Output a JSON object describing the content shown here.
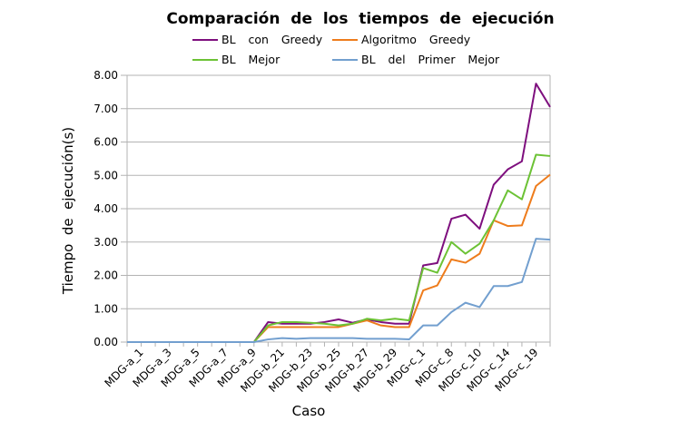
{
  "chart_data": {
    "type": "line",
    "title": "Comparación  de  los  tiempos  de  ejecución",
    "xlabel": "Caso",
    "ylabel": "Tiempo  de  ejecución(s)",
    "ylim": [
      0,
      8
    ],
    "yticks": [
      "0.00",
      "1.00",
      "2.00",
      "3.00",
      "4.00",
      "5.00",
      "6.00",
      "7.00",
      "8.00"
    ],
    "grid": "horizontal",
    "legend_position": "top",
    "x_tick_labels": [
      "MDG-a_1",
      "MDG-a_3",
      "MDG-a_5",
      "MDG-a_7",
      "MDG-a_9",
      "MDG-b_21",
      "MDG-b_23",
      "MDG-b_25",
      "MDG-b_27",
      "MDG-b_29",
      "MDG-c_1",
      "MDG-c_8",
      "MDG-c_10",
      "MDG-c_14",
      "MDG-c_19"
    ],
    "series": [
      {
        "name": "BL  con  Greedy",
        "color": "#7e0f7e",
        "values": [
          0,
          0,
          0,
          0,
          0,
          0,
          0,
          0,
          0,
          0,
          0.6,
          0.55,
          0.55,
          0.55,
          0.6,
          0.68,
          0.58,
          0.68,
          0.6,
          0.55,
          0.55,
          2.3,
          2.37,
          3.7,
          3.82,
          3.4,
          4.72,
          5.18,
          5.42,
          7.75,
          7.05
        ]
      },
      {
        "name": "Algoritmo  Greedy",
        "color": "#ee7c1c",
        "values": [
          0,
          0,
          0,
          0,
          0,
          0,
          0,
          0,
          0,
          0,
          0.45,
          0.45,
          0.45,
          0.45,
          0.45,
          0.45,
          0.55,
          0.65,
          0.5,
          0.45,
          0.45,
          1.55,
          1.7,
          2.48,
          2.38,
          2.65,
          3.65,
          3.48,
          3.5,
          4.68,
          5.02
        ]
      },
      {
        "name": "BL  Mejor",
        "color": "#6cc235",
        "values": [
          0,
          0,
          0,
          0,
          0,
          0,
          0,
          0,
          0,
          0,
          0.5,
          0.6,
          0.6,
          0.58,
          0.55,
          0.5,
          0.55,
          0.7,
          0.65,
          0.7,
          0.65,
          2.22,
          2.08,
          3.0,
          2.65,
          2.95,
          3.65,
          4.55,
          4.28,
          5.62,
          5.58
        ]
      },
      {
        "name": "BL  del  Primer  Mejor",
        "color": "#729fcf",
        "values": [
          0,
          0,
          0,
          0,
          0,
          0,
          0,
          0,
          0,
          0,
          0.08,
          0.12,
          0.1,
          0.12,
          0.12,
          0.12,
          0.12,
          0.1,
          0.1,
          0.1,
          0.08,
          0.5,
          0.5,
          0.9,
          1.18,
          1.05,
          1.68,
          1.68,
          1.8,
          3.1,
          3.07
        ]
      }
    ]
  }
}
